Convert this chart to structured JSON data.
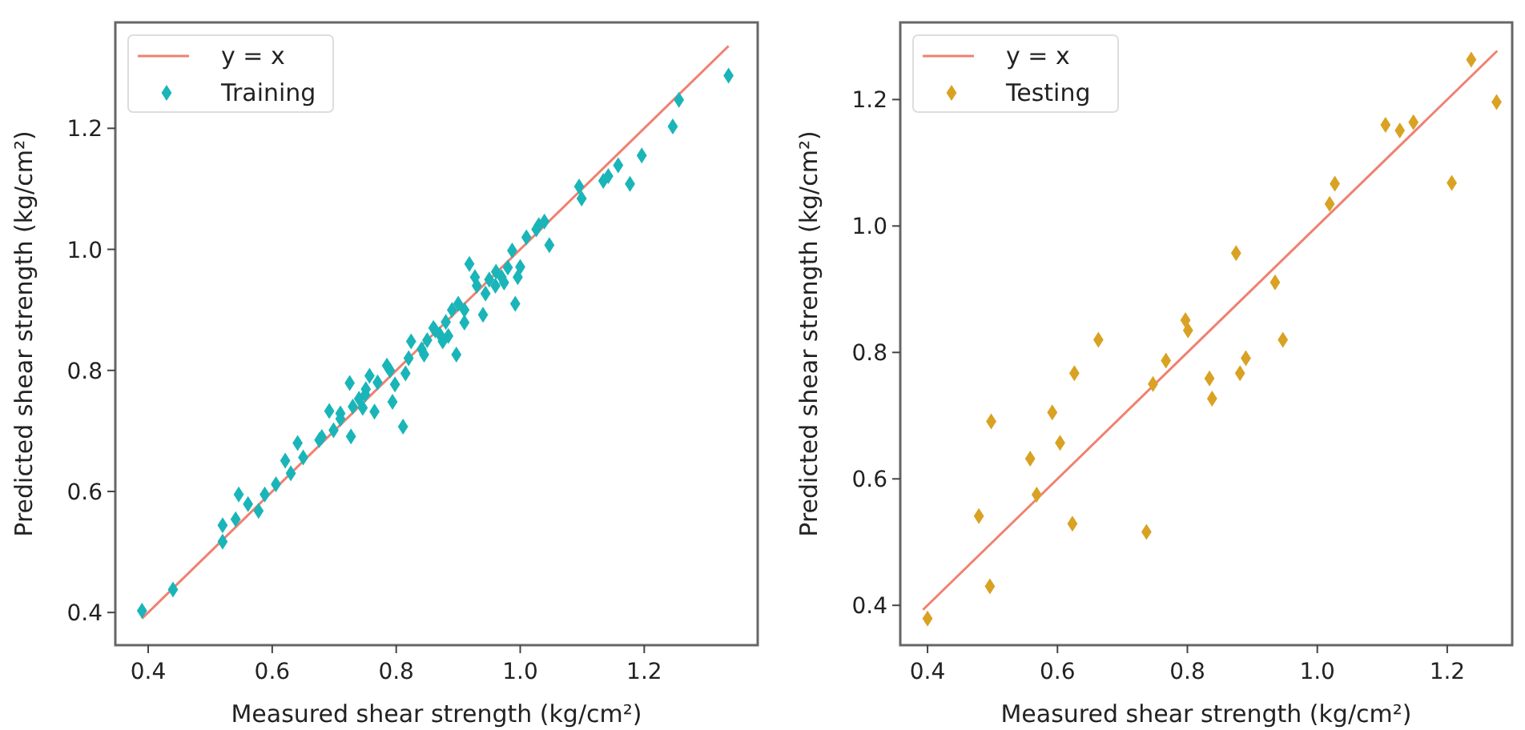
{
  "chart_data": [
    {
      "type": "scatter",
      "xlabel": "Measured shear strength (kg/cm²)",
      "ylabel": "Predicted shear strength (kg/cm²)",
      "xlim": [
        0.347,
        1.383
      ],
      "ylim": [
        0.346,
        1.375
      ],
      "xticks": [
        0.4,
        0.6,
        0.8,
        {
          "value": 1,
          "label": "1.0"
        },
        1.2
      ],
      "yticks": [
        0.4,
        0.6,
        0.8,
        {
          "value": 1,
          "label": "1.0"
        },
        1.2
      ],
      "legend": "top left",
      "grid": false,
      "series": [
        {
          "name": "y = x",
          "type": "line",
          "color": "#f08070",
          "x": [
            0.39,
            1.336
          ],
          "values": [
            0.39,
            1.336
          ]
        },
        {
          "name": "Training",
          "marker": "diamond",
          "color": "#1ab5b8",
          "x": [
            0.39,
            0.44,
            0.52,
            0.52,
            0.541,
            0.546,
            0.561,
            0.578,
            0.588,
            0.606,
            0.621,
            0.63,
            0.641,
            0.65,
            0.676,
            0.692,
            0.699,
            0.71,
            0.727,
            0.725,
            0.74,
            0.751,
            0.757,
            0.746,
            0.765,
            0.785,
            0.794,
            0.798,
            0.811,
            0.815,
            0.824,
            0.841,
            0.845,
            0.863,
            0.875,
            0.884,
            0.897,
            0.91,
            0.918,
            0.927,
            0.94,
            0.944,
            0.961,
            0.97,
            0.974,
            0.987,
            0.992,
            0.996,
            1.0,
            1.026,
            1.039,
            1.047,
            1.095,
            1.099,
            1.134,
            1.142,
            1.158,
            1.177,
            1.196,
            1.246,
            1.256,
            1.336,
            0.86,
            0.87,
            0.88,
            0.85,
            0.89,
            0.9,
            0.91,
            0.93,
            0.95,
            0.96,
            0.98,
            1.01,
            1.03,
            0.75,
            0.77,
            0.79,
            0.82,
            0.71,
            0.68,
            0.73
          ],
          "values": [
            0.403,
            0.438,
            0.544,
            0.517,
            0.554,
            0.595,
            0.579,
            0.568,
            0.595,
            0.612,
            0.651,
            0.63,
            0.68,
            0.656,
            0.685,
            0.733,
            0.701,
            0.729,
            0.691,
            0.779,
            0.753,
            0.769,
            0.791,
            0.738,
            0.732,
            0.808,
            0.748,
            0.777,
            0.707,
            0.795,
            0.848,
            0.835,
            0.826,
            0.866,
            0.848,
            0.857,
            0.826,
            0.879,
            0.976,
            0.954,
            0.892,
            0.927,
            0.963,
            0.954,
            0.945,
            0.998,
            0.91,
            0.954,
            0.971,
            1.033,
            1.046,
            1.007,
            1.104,
            1.084,
            1.113,
            1.121,
            1.139,
            1.108,
            1.155,
            1.203,
            1.247,
            1.287,
            0.87,
            0.86,
            0.88,
            0.85,
            0.9,
            0.91,
            0.9,
            0.94,
            0.95,
            0.94,
            0.97,
            1.02,
            1.04,
            0.76,
            0.78,
            0.8,
            0.82,
            0.72,
            0.69,
            0.74
          ]
        }
      ]
    },
    {
      "type": "scatter",
      "xlabel": "Measured shear strength (kg/cm²)",
      "ylabel": "Predicted shear strength (kg/cm²)",
      "xlim": [
        0.358,
        1.3
      ],
      "ylim": [
        0.337,
        1.322
      ],
      "xticks": [
        0.4,
        0.6,
        0.8,
        {
          "value": 1,
          "label": "1.0"
        },
        1.2
      ],
      "yticks": [
        0.4,
        0.6,
        0.8,
        {
          "value": 1,
          "label": "1.0"
        },
        1.2
      ],
      "legend": "top left",
      "grid": false,
      "series": [
        {
          "name": "y = x",
          "type": "line",
          "color": "#f08070",
          "x": [
            0.393,
            1.277
          ],
          "values": [
            0.393,
            1.277
          ]
        },
        {
          "name": "Testing",
          "marker": "diamond",
          "color": "#d9a223",
          "x": [
            0.4,
            0.479,
            0.498,
            0.496,
            0.558,
            0.568,
            0.592,
            0.604,
            0.623,
            0.626,
            0.663,
            0.737,
            0.747,
            0.767,
            0.797,
            0.801,
            0.834,
            0.838,
            0.881,
            0.89,
            0.947,
            0.875,
            0.935,
            1.019,
            1.027,
            1.105,
            1.127,
            1.148,
            1.207,
            1.237,
            1.276
          ],
          "values": [
            0.379,
            0.541,
            0.691,
            0.43,
            0.632,
            0.575,
            0.705,
            0.657,
            0.529,
            0.767,
            0.82,
            0.516,
            0.75,
            0.787,
            0.851,
            0.835,
            0.759,
            0.727,
            0.767,
            0.791,
            0.82,
            0.957,
            0.911,
            1.035,
            1.067,
            1.16,
            1.151,
            1.164,
            1.068,
            1.263,
            1.196
          ]
        }
      ]
    }
  ]
}
